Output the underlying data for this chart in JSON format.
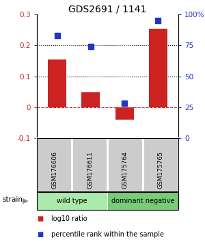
{
  "title": "GDS2691 / 1141",
  "samples": [
    "GSM176606",
    "GSM176611",
    "GSM175764",
    "GSM175765"
  ],
  "bar_values": [
    0.155,
    0.048,
    -0.04,
    0.255
  ],
  "percentile_values": [
    0.83,
    0.74,
    0.28,
    0.95
  ],
  "bar_color": "#cc2222",
  "percentile_color": "#2233cc",
  "ylim_left": [
    -0.1,
    0.3
  ],
  "ylim_right": [
    0.0,
    1.0
  ],
  "yticks_left": [
    -0.1,
    0.0,
    0.1,
    0.2,
    0.3
  ],
  "ytick_labels_left": [
    "-0.1",
    "0",
    "0.1",
    "0.2",
    "0.3"
  ],
  "yticks_right": [
    0.0,
    0.25,
    0.5,
    0.75,
    1.0
  ],
  "ytick_labels_right": [
    "0",
    "25",
    "50",
    "75",
    "100%"
  ],
  "hlines_dotted": [
    0.1,
    0.2
  ],
  "hline_dashed": 0.0,
  "groups": [
    {
      "label": "wild type",
      "indices": [
        0,
        1
      ],
      "color": "#aaeaaa"
    },
    {
      "label": "dominant negative",
      "indices": [
        2,
        3
      ],
      "color": "#77cc77"
    }
  ],
  "legend_bar_label": "log10 ratio",
  "legend_pct_label": "percentile rank within the sample",
  "strain_label": "strain",
  "bar_width": 0.55,
  "title_fontsize": 10,
  "tick_fontsize": 7.5,
  "sample_fontsize": 6.5,
  "group_fontsize": 7,
  "legend_fontsize": 7
}
